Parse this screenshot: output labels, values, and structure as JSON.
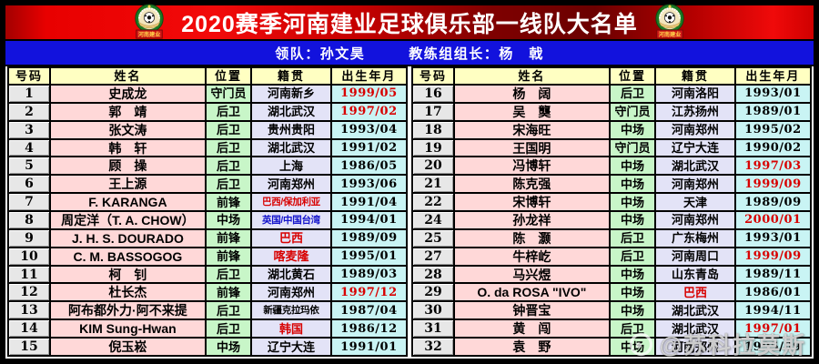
{
  "title": "2020赛季河南建业足球俱乐部一线队大名单",
  "team_badge": {
    "banner": "河南建业"
  },
  "staff": {
    "leader_label": "领队：",
    "leader_name": "孙文昊",
    "coach_label": "教练组组长：",
    "coach_name": "杨　戟"
  },
  "columns": [
    "号码",
    "姓名",
    "位置",
    "籍贯",
    "出生年月"
  ],
  "left_rows": [
    {
      "no": "1",
      "name": "史成龙",
      "pos": "守门员",
      "origin": "河南新乡",
      "birth": "1999/05",
      "birth_color": "red"
    },
    {
      "no": "2",
      "name": "郭　靖",
      "pos": "后卫",
      "origin": "湖北武汉",
      "birth": "1997/02",
      "birth_color": "red"
    },
    {
      "no": "3",
      "name": "张文涛",
      "pos": "后卫",
      "origin": "贵州贵阳",
      "birth": "1993/04"
    },
    {
      "no": "4",
      "name": "韩　轩",
      "pos": "后卫",
      "origin": "湖北武汉",
      "birth": "1991/02"
    },
    {
      "no": "5",
      "name": "顾　操",
      "pos": "后卫",
      "origin": "上海",
      "birth": "1986/05"
    },
    {
      "no": "6",
      "name": "王上源",
      "pos": "后卫",
      "origin": "河南郑州",
      "birth": "1993/06"
    },
    {
      "no": "7",
      "name": "F. KARANGA",
      "pos": "前锋",
      "origin": "巴西/保加利亚",
      "origin_color": "red",
      "origin_small": true,
      "birth": "1991/04"
    },
    {
      "no": "8",
      "name": "周定洋（T. A. CHOW）",
      "pos": "中场",
      "origin": "英国/中国台湾",
      "origin_color": "blue",
      "origin_small": true,
      "birth": "1994/01"
    },
    {
      "no": "9",
      "name": "J. H. S. DOURADO",
      "pos": "前锋",
      "origin": "巴西",
      "origin_color": "red",
      "birth": "1989/09"
    },
    {
      "no": "10",
      "name": "C. M. BASSOGOG",
      "pos": "前锋",
      "origin": "喀麦隆",
      "origin_color": "red",
      "birth": "1995/01"
    },
    {
      "no": "11",
      "name": "柯　钊",
      "pos": "后卫",
      "origin": "湖北黄石",
      "birth": "1989/03"
    },
    {
      "no": "12",
      "name": "杜长杰",
      "pos": "前锋",
      "origin": "河南郑州",
      "birth": "1997/12",
      "birth_color": "red"
    },
    {
      "no": "13",
      "name": "阿布都外力·阿不来提",
      "pos": "后卫",
      "origin": "新疆克拉玛依",
      "origin_small": true,
      "birth": "1987/04"
    },
    {
      "no": "14",
      "name": "KIM Sung-Hwan",
      "pos": "后卫",
      "origin": "韩国",
      "origin_color": "red",
      "birth": "1986/12"
    },
    {
      "no": "15",
      "name": "倪玉崧",
      "pos": "中场",
      "origin": "辽宁大连",
      "birth": "1991/01"
    }
  ],
  "right_rows": [
    {
      "no": "16",
      "name": "杨　阔",
      "pos": "后卫",
      "origin": "河南洛阳",
      "birth": "1993/01"
    },
    {
      "no": "17",
      "name": "吴　龑",
      "pos": "守门员",
      "origin": "江苏扬州",
      "birth": "1989/01"
    },
    {
      "no": "18",
      "name": "宋海旺",
      "pos": "中场",
      "origin": "河南郑州",
      "birth": "1995/02"
    },
    {
      "no": "19",
      "name": "王国明",
      "pos": "守门员",
      "origin": "辽宁大连",
      "birth": "1990/02"
    },
    {
      "no": "20",
      "name": "冯博轩",
      "pos": "中场",
      "origin": "湖北武汉",
      "birth": "1997/03",
      "birth_color": "red"
    },
    {
      "no": "21",
      "name": "陈克强",
      "pos": "中场",
      "origin": "河南郑州",
      "birth": "1999/09",
      "birth_color": "red"
    },
    {
      "no": "22",
      "name": "宋博轩",
      "pos": "中场",
      "origin": "天津",
      "birth": "1989/09"
    },
    {
      "no": "24",
      "name": "孙龙祥",
      "pos": "中场",
      "origin": "河南郑州",
      "birth": "2000/01",
      "birth_color": "red"
    },
    {
      "no": "25",
      "name": "陈　灏",
      "pos": "后卫",
      "origin": "广东梅州",
      "birth": "1993/01"
    },
    {
      "no": "27",
      "name": "牛梓屹",
      "pos": "后卫",
      "origin": "河南周口",
      "birth": "1999/09",
      "birth_color": "red"
    },
    {
      "no": "28",
      "name": "马兴煜",
      "pos": "中场",
      "origin": "山东青岛",
      "birth": "1989/11"
    },
    {
      "no": "29",
      "name": "O. da ROSA \"IVO\"",
      "pos": "中场",
      "origin": "巴西",
      "origin_color": "red",
      "birth": "1986/01"
    },
    {
      "no": "30",
      "name": "钟晋宝",
      "pos": "中场",
      "origin": "湖北武汉",
      "birth": "1994/11"
    },
    {
      "no": "31",
      "name": "黄　闯",
      "pos": "后卫",
      "origin": "湖北武汉",
      "birth": "1997/01",
      "birth_color": "red"
    },
    {
      "no": "32",
      "name": "袁　野",
      "pos": "中场",
      "origin": "河南郑州",
      "birth": "1995/09"
    }
  ],
  "watermark": {
    "handle": "@苏科拉莫斯"
  },
  "colors": {
    "bar_blue": "#1212dd",
    "header_bg": "#ffffc2",
    "no_bg": "#e7e7e7",
    "name_bg": "#ffd8d8",
    "pos_bg": "#c8f6c8",
    "origin_bg": "#e3e3f7",
    "birth_bg": "#c9f4f4",
    "red_text": "#d80000",
    "blue_text": "#1414cc"
  }
}
